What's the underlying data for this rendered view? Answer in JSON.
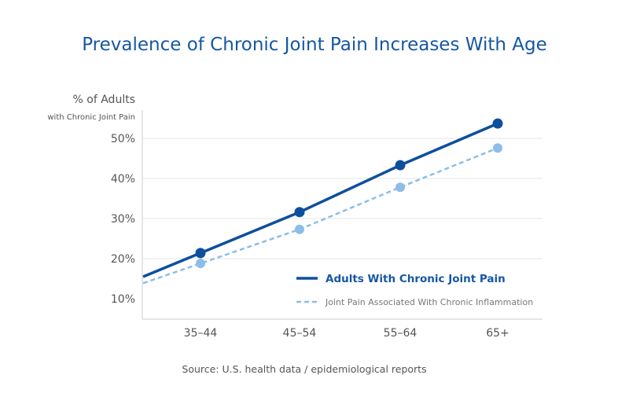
{
  "chart_data": {
    "type": "line",
    "title": "Prevalence of Chronic Joint Pain Increases With Age",
    "ylabel": "% of Adults",
    "ylabel_sub": "with Chronic Joint Pain",
    "categories": [
      "35–44",
      "45–54",
      "55–64",
      "65+"
    ],
    "yticks": [
      "10%",
      "20%",
      "30%",
      "40%",
      "50%"
    ],
    "ylim": [
      10,
      50
    ],
    "grid": true,
    "legend_placement": "bottom-right",
    "series": [
      {
        "name": "Adults With Chronic Joint Pain",
        "values": [
          21.4,
          31.6,
          43.3,
          53.7
        ],
        "color": "#0d4f9c",
        "style": "solid"
      },
      {
        "name": "Joint Pain Associated With Chronic Inflammation",
        "values": [
          18.8,
          27.3,
          37.8,
          47.6
        ],
        "color": "#8dbde8",
        "style": "dashed"
      }
    ],
    "source": "Source: U.S. health data / epidemiological reports"
  }
}
